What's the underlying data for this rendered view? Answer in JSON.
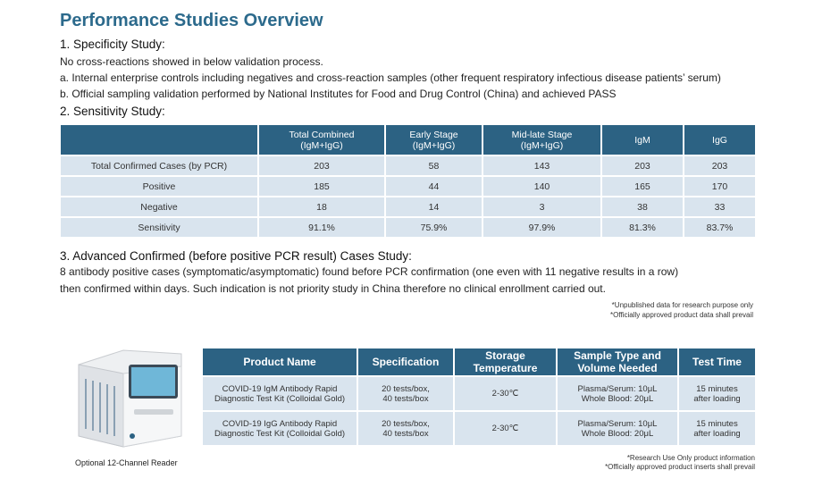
{
  "title": "Performance Studies Overview",
  "sections": [
    {
      "heading": "1. Specificity Study:",
      "lines": [
        "No cross-reactions showed in below validation process.",
        "a. Internal enterprise controls including negatives and cross-reaction samples (other frequent respiratory infectious disease patients’ serum)",
        "b. Official sampling validation performed by National Institutes for Food and Drug Control (China) and achieved PASS"
      ]
    },
    {
      "heading": "2. Sensitivity Study:"
    },
    {
      "heading": "3. Advanced Confirmed (before positive PCR result) Cases Study:",
      "lines": [
        "8 antibody positive cases (symptomatic/asymptomatic) found before PCR confirmation (one even with 11 negative results in a row)",
        "then confirmed within days. Such indication is not priority study in China therefore no clinical enrollment carried out."
      ]
    }
  ],
  "sensitivity_table": {
    "header": [
      "Total Combined\n(IgM+IgG)",
      "Early Stage\n(IgM+IgG)",
      "Mid-late Stage\n(IgM+IgG)",
      "IgM",
      "IgG"
    ],
    "rows": [
      [
        "Total Confirmed Cases (by PCR)",
        203,
        58,
        143,
        203,
        203
      ],
      [
        "Positive",
        185,
        44,
        140,
        165,
        170
      ],
      [
        "Negative",
        18,
        14,
        3,
        38,
        33
      ],
      [
        "Sensitivity",
        "91.1%",
        "75.9%",
        "97.9%",
        "81.3%",
        "83.7%"
      ]
    ]
  },
  "notes_1": [
    "*Unpublished data for research purpose only",
    "*Officially approved product data shall prevail"
  ],
  "device_caption": "Optional 12-Channel Reader",
  "product_table": {
    "header": [
      "Product Name",
      "Specification",
      "Storage\nTemperature",
      "Sample Type and\nVolume Needed",
      "Test Time"
    ],
    "rows": [
      [
        "COVID-19 IgM Antibody Rapid\nDiagnostic Test Kit (Colloidal Gold)",
        "20 tests/box,\n40 tests/box",
        "2-30℃",
        "Plasma/Serum: 10μL\nWhole Blood: 20μL",
        "15 minutes\nafter loading"
      ],
      [
        "COVID-19 IgG Antibody Rapid\nDiagnostic Test Kit (Colloidal Gold)",
        "20 tests/box,\n40 tests/box",
        "2-30℃",
        "Plasma/Serum: 10μL\nWhole Blood: 20μL",
        "15 minutes\nafter loading"
      ]
    ]
  },
  "notes_2": [
    "*Research Use Only product information",
    "*Officially approved product inserts shall prevail"
  ]
}
